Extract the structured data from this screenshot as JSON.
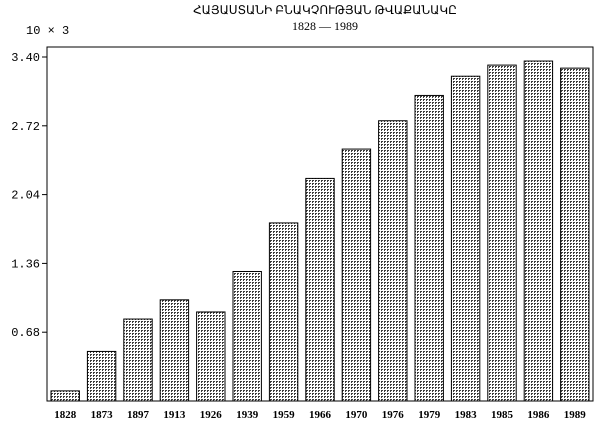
{
  "chart_data": {
    "type": "bar",
    "title": "ՀԱՅԱՍՏԱՆԻ ԲՆԱԿՉՈՒԹՅԱՆ ԹՎԱՔԱՆԱԿԸ",
    "subtitle": "1828 — 1989",
    "unit_label": "10 × 3",
    "xlabel": "",
    "ylabel": "",
    "ylim": [
      0,
      3.4
    ],
    "yticks": [
      0.68,
      1.36,
      2.04,
      2.72,
      3.4
    ],
    "ytick_labels": [
      "0.68",
      "1.36",
      "2.04",
      "2.72",
      "3.40"
    ],
    "grid": false,
    "categories": [
      "1828",
      "1873",
      "1897",
      "1913",
      "1926",
      "1939",
      "1959",
      "1966",
      "1970",
      "1976",
      "1979",
      "1983",
      "1985",
      "1986",
      "1989"
    ],
    "values": [
      0.1,
      0.49,
      0.81,
      1.0,
      0.88,
      1.28,
      1.76,
      2.2,
      2.49,
      2.77,
      3.02,
      3.21,
      3.32,
      3.36,
      3.29
    ]
  },
  "colors": {
    "bar_fill": "#b8b8b8",
    "bar_stroke": "#000000",
    "axis": "#000000"
  }
}
